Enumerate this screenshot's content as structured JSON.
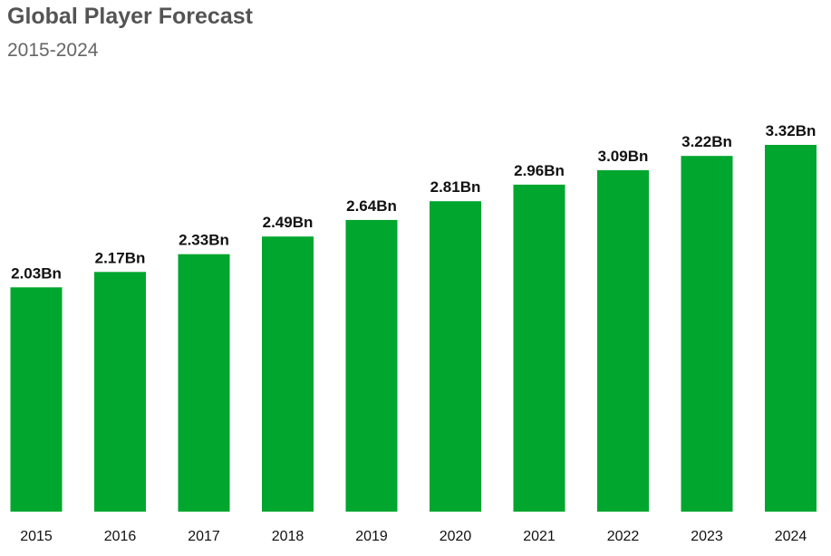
{
  "chart_data": {
    "type": "bar",
    "title": "Global Player Forecast",
    "subtitle": "2015-2024",
    "categories": [
      "2015",
      "2016",
      "2017",
      "2018",
      "2019",
      "2020",
      "2021",
      "2022",
      "2023",
      "2024"
    ],
    "values": [
      2.03,
      2.17,
      2.33,
      2.49,
      2.64,
      2.81,
      2.96,
      3.09,
      3.22,
      3.32
    ],
    "value_labels": [
      "2.03Bn",
      "2.17Bn",
      "2.33Bn",
      "2.49Bn",
      "2.64Bn",
      "2.81Bn",
      "2.96Bn",
      "3.09Bn",
      "3.22Bn",
      "3.32Bn"
    ],
    "xlabel": "",
    "ylabel": "",
    "grid": false,
    "bar_color": "#00a62e"
  }
}
